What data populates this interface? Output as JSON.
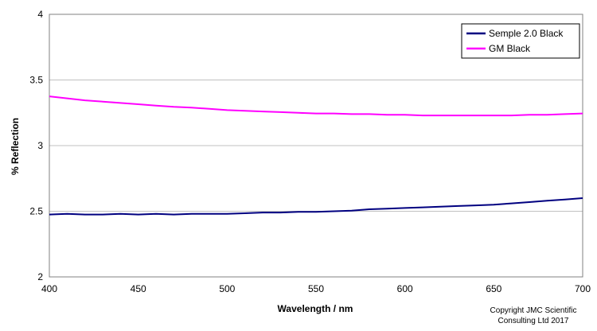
{
  "chart_data": {
    "type": "line",
    "xlabel": "Wavelength / nm",
    "ylabel": "% Reflection",
    "xlim": [
      400,
      700
    ],
    "ylim": [
      2,
      4
    ],
    "xticks": [
      400,
      450,
      500,
      550,
      600,
      650,
      700
    ],
    "yticks": [
      2,
      2.5,
      3,
      3.5,
      4
    ],
    "ytick_labels": [
      "2",
      "2.5",
      "3",
      "3.5",
      "4"
    ],
    "grid": "horizontal",
    "legend_position": "top-right",
    "series": [
      {
        "name": "Semple 2.0 Black",
        "color": "#000080",
        "x": [
          400,
          410,
          420,
          430,
          440,
          450,
          460,
          470,
          480,
          490,
          500,
          510,
          520,
          530,
          540,
          550,
          560,
          570,
          580,
          590,
          600,
          610,
          620,
          630,
          640,
          650,
          660,
          670,
          680,
          690,
          700
        ],
        "values": [
          2.475,
          2.48,
          2.475,
          2.475,
          2.48,
          2.475,
          2.48,
          2.475,
          2.48,
          2.48,
          2.48,
          2.485,
          2.49,
          2.49,
          2.495,
          2.495,
          2.5,
          2.505,
          2.515,
          2.52,
          2.525,
          2.53,
          2.535,
          2.54,
          2.545,
          2.55,
          2.56,
          2.57,
          2.58,
          2.59,
          2.6
        ]
      },
      {
        "name": "GM Black",
        "color": "#FF00FF",
        "x": [
          400,
          410,
          420,
          430,
          440,
          450,
          460,
          470,
          480,
          490,
          500,
          510,
          520,
          530,
          540,
          550,
          560,
          570,
          580,
          590,
          600,
          610,
          620,
          630,
          640,
          650,
          660,
          670,
          680,
          690,
          700
        ],
        "values": [
          3.375,
          3.36,
          3.345,
          3.335,
          3.325,
          3.315,
          3.305,
          3.295,
          3.29,
          3.28,
          3.27,
          3.265,
          3.26,
          3.255,
          3.25,
          3.245,
          3.245,
          3.24,
          3.24,
          3.235,
          3.235,
          3.23,
          3.23,
          3.23,
          3.23,
          3.23,
          3.23,
          3.235,
          3.235,
          3.24,
          3.245
        ]
      }
    ]
  },
  "copyright": {
    "line1": "Copyright JMC Scientific",
    "line2": "Consulting Ltd 2017"
  }
}
